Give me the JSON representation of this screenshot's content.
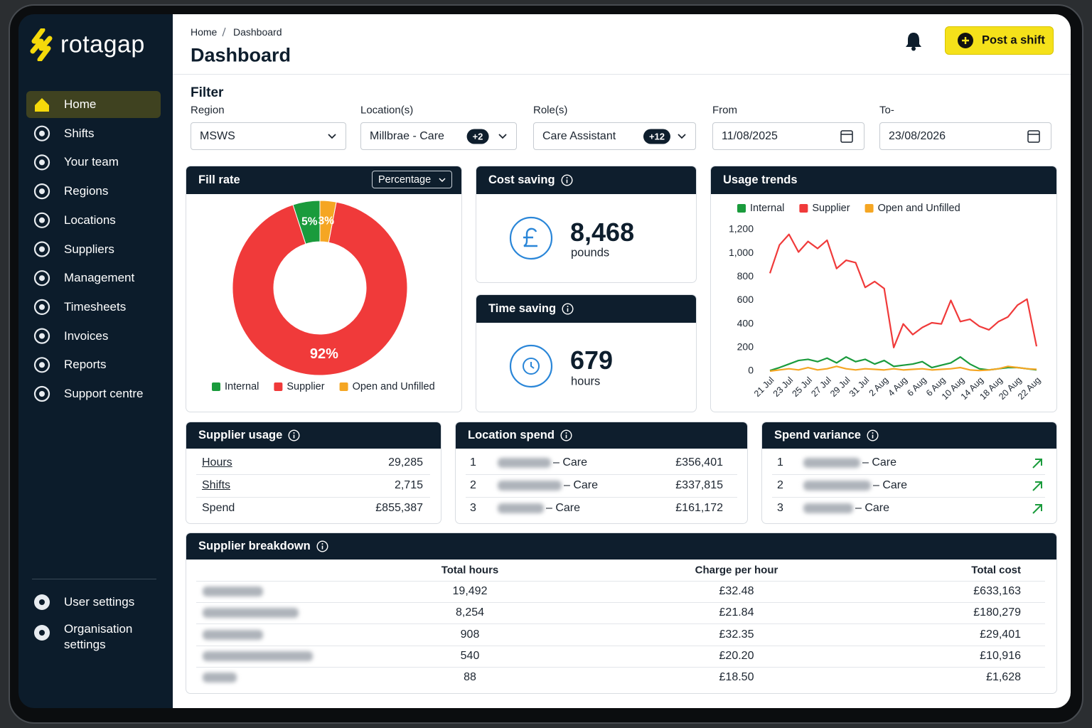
{
  "brand": "rotagap",
  "nav": [
    "Home",
    "Shifts",
    "Your team",
    "Regions",
    "Locations",
    "Suppliers",
    "Management",
    "Timesheets",
    "Invoices",
    "Reports",
    "Support centre"
  ],
  "account_nav": [
    "User settings",
    "Organisation settings"
  ],
  "header": {
    "breadcrumb": [
      "Home",
      "Dashboard"
    ],
    "title": "Dashboard",
    "action": "Post a shift"
  },
  "filter": {
    "title": "Filter",
    "fields": [
      {
        "label": "Region",
        "value": "MSWS"
      },
      {
        "label": "Location(s)",
        "value": "Millbrae - Care",
        "badge": "+2"
      },
      {
        "label": "Role(s)",
        "value": "Care Assistant",
        "badge": "+12"
      },
      {
        "label": "From",
        "value": "11/08/2025"
      },
      {
        "label": "To-",
        "value": "23/08/2026"
      }
    ]
  },
  "fill_rate_control": "Percentage",
  "cost_saving": {
    "title": "Cost saving",
    "value": "8,468",
    "unit": "pounds"
  },
  "time_saving": {
    "title": "Time saving",
    "value": "679",
    "unit": "hours"
  },
  "supplier_usage": {
    "title": "Supplier usage",
    "rows": [
      [
        "Hours",
        "29,285"
      ],
      [
        "Shifts",
        "2,715"
      ],
      [
        "Spend",
        "£855,387"
      ]
    ]
  },
  "location_spend": {
    "title": "Location spend",
    "rows": [
      [
        "1",
        "– Care",
        "£356,401"
      ],
      [
        "2",
        "– Care",
        "£337,815"
      ],
      [
        "3",
        "– Care",
        "£161,172"
      ]
    ]
  },
  "spend_variance": {
    "title": "Spend variance",
    "rows": [
      [
        "1",
        "– Care"
      ],
      [
        "2",
        "– Care"
      ],
      [
        "3",
        "– Care"
      ]
    ]
  },
  "supplier_breakdown": {
    "title": "Supplier breakdown",
    "columns": [
      "Total hours",
      "Charge per hour",
      "Total cost"
    ],
    "rows": [
      [
        "19,492",
        "£32.48",
        "£633,163"
      ],
      [
        "8,254",
        "£21.84",
        "£180,279"
      ],
      [
        "908",
        "£32.35",
        "£29,401"
      ],
      [
        "540",
        "£20.20",
        "£10,916"
      ],
      [
        "88",
        "£18.50",
        "£1,628"
      ]
    ]
  },
  "chart_data": [
    {
      "type": "pie",
      "title": "Fill rate",
      "categories": [
        "Internal",
        "Supplier",
        "Open and Unfilled"
      ],
      "values": [
        5,
        92,
        3
      ],
      "value_labels": [
        "5%",
        "92%",
        "3%"
      ],
      "colors": [
        "#1a9b3c",
        "#f03a3a",
        "#f5a623"
      ],
      "legend": "bottom"
    },
    {
      "type": "line",
      "title": "Usage trends",
      "categories": [
        "21 Jul",
        null,
        "23 Jul",
        null,
        "25 Jul",
        null,
        "27 Jul",
        null,
        "29 Jul",
        null,
        "31 Jul",
        null,
        "2 Aug",
        null,
        "4 Aug",
        null,
        "6 Aug",
        null,
        "6 Aug",
        null,
        "10 Aug",
        null,
        "14 Aug",
        null,
        "18 Aug",
        null,
        "20 Aug",
        null,
        "22 Aug"
      ],
      "series": [
        {
          "name": "Internal",
          "color": "#1a9b3c",
          "values": [
            5,
            30,
            60,
            90,
            100,
            80,
            110,
            70,
            120,
            80,
            100,
            60,
            90,
            40,
            50,
            60,
            80,
            30,
            50,
            70,
            120,
            60,
            20,
            10,
            20,
            30,
            30,
            20,
            10
          ]
        },
        {
          "name": "Supplier",
          "color": "#f03a3a",
          "values": [
            830,
            1070,
            1160,
            1010,
            1100,
            1040,
            1110,
            870,
            940,
            920,
            710,
            760,
            700,
            200,
            400,
            310,
            370,
            410,
            400,
            600,
            420,
            440,
            380,
            350,
            420,
            460,
            560,
            610,
            210
          ]
        },
        {
          "name": "Open and Unfilled",
          "color": "#f5a623",
          "values": [
            0,
            10,
            20,
            10,
            30,
            10,
            20,
            40,
            20,
            10,
            20,
            15,
            10,
            20,
            10,
            15,
            20,
            10,
            15,
            20,
            30,
            10,
            5,
            10,
            20,
            40,
            30,
            20,
            15
          ]
        }
      ],
      "ylim": [
        0,
        1200
      ],
      "yticks": [
        0,
        200,
        400,
        600,
        800,
        {
          "value": 1000,
          "label": "1,000"
        },
        {
          "value": 1200,
          "label": "1,200"
        }
      ],
      "grid": false,
      "legend": "top"
    }
  ]
}
